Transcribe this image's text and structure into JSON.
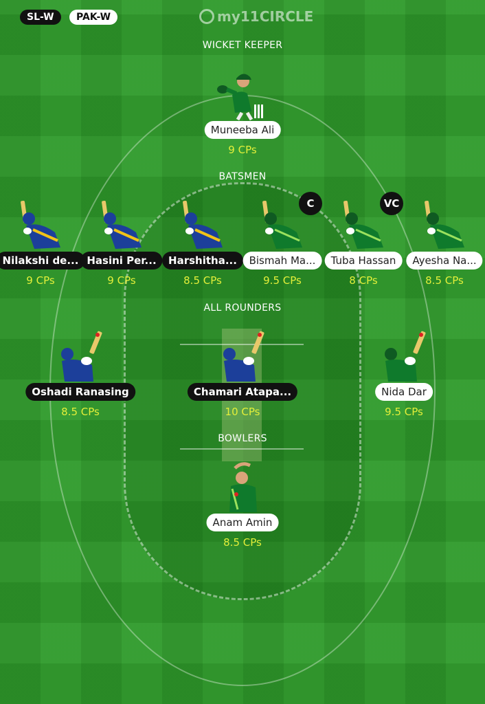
{
  "teams": {
    "left": "SL-W",
    "right": "PAK-W"
  },
  "brand": {
    "logo_text": "my11CIRCLE"
  },
  "sections": {
    "wicket_keeper": "WICKET KEEPER",
    "batsmen": "BATSMEN",
    "all_rounders": "ALL ROUNDERS",
    "bowlers": "BOWLERS"
  },
  "colors": {
    "field": "#2e9a2a",
    "credits": "#e3ef3a",
    "sl_jersey": "#1c3f9a",
    "pak_jersey": "#0f7a2c"
  },
  "players": {
    "wk1": {
      "name": "Muneeba Ali",
      "credits": "9 CPs",
      "team": "PAK-W"
    },
    "bat1": {
      "name": "Nilakshi de...",
      "credits": "9 CPs",
      "team": "SL-W"
    },
    "bat2": {
      "name": "Hasini Per...",
      "credits": "9 CPs",
      "team": "SL-W"
    },
    "bat3": {
      "name": "Harshitha...",
      "credits": "8.5 CPs",
      "team": "SL-W"
    },
    "bat4": {
      "name": "Bismah Ma...",
      "credits": "9.5 CPs",
      "team": "PAK-W",
      "role_badge": "C"
    },
    "bat5": {
      "name": "Tuba Hassan",
      "credits": "8 CPs",
      "team": "PAK-W",
      "role_badge": "VC"
    },
    "bat6": {
      "name": "Ayesha Na...",
      "credits": "8.5 CPs",
      "team": "PAK-W"
    },
    "ar1": {
      "name": "Oshadi Ranasing",
      "credits": "8.5 CPs",
      "team": "SL-W"
    },
    "ar2": {
      "name": "Chamari Atapa...",
      "credits": "10 CPs",
      "team": "SL-W"
    },
    "ar3": {
      "name": "Nida Dar",
      "credits": "9.5 CPs",
      "team": "PAK-W"
    },
    "bowl1": {
      "name": "Anam Amin",
      "credits": "8.5 CPs",
      "team": "PAK-W"
    }
  }
}
